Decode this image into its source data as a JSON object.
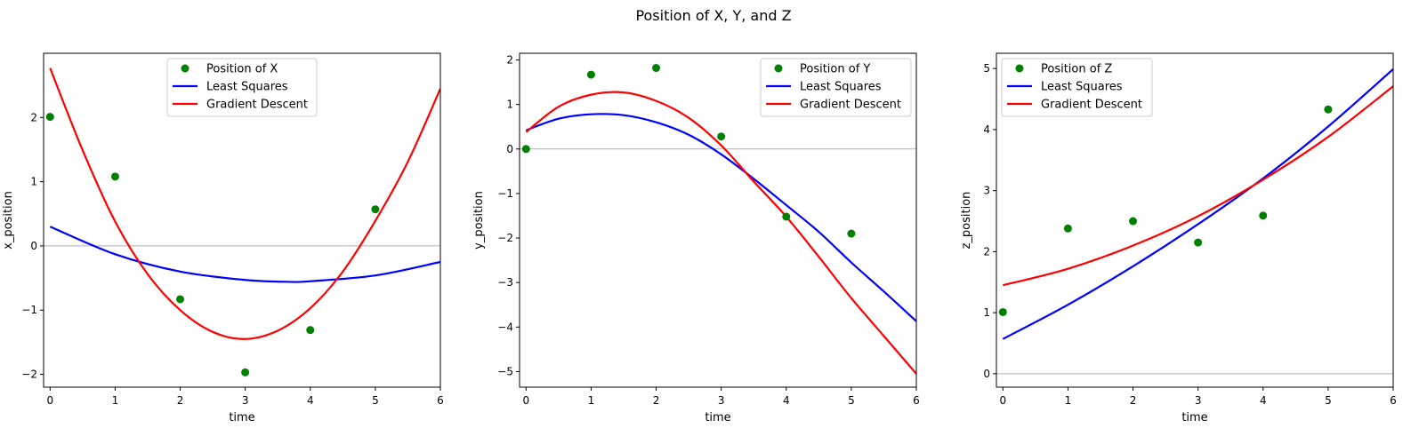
{
  "suptitle": "Position of X, Y, and Z",
  "colors": {
    "points": "#008000",
    "least_squares": "#0000ff",
    "gradient_descent": "#ff0000",
    "zero_line": "#b0b0b0"
  },
  "chart_data": [
    {
      "type": "scatter+line",
      "xlabel": "time",
      "ylabel": "x_position",
      "xlim": [
        -0.1,
        6
      ],
      "ylim": [
        -2.2,
        3.0
      ],
      "xticks": [
        0,
        1,
        2,
        3,
        4,
        5,
        6
      ],
      "yticks": [
        -2,
        -1,
        0,
        1,
        2
      ],
      "legend_position": "top-center",
      "zero_line": true,
      "points": {
        "name": "Position of X",
        "x": [
          0,
          1,
          2,
          3,
          4,
          5
        ],
        "y": [
          2.01,
          1.08,
          -0.83,
          -1.97,
          -1.31,
          0.57
        ]
      },
      "series": [
        {
          "name": "Least Squares",
          "x": [
            0,
            1,
            2,
            3,
            3.7,
            4,
            5,
            6
          ],
          "y": [
            0.3,
            -0.13,
            -0.4,
            -0.53,
            -0.56,
            -0.55,
            -0.46,
            -0.25
          ]
        },
        {
          "name": "Gradient Descent",
          "x": [
            0,
            0.5,
            1,
            1.5,
            2,
            2.5,
            3,
            3.5,
            4,
            4.5,
            5,
            5.5,
            6
          ],
          "y": [
            2.77,
            1.49,
            0.38,
            -0.44,
            -1.0,
            -1.34,
            -1.45,
            -1.32,
            -0.97,
            -0.4,
            0.39,
            1.31,
            2.45
          ]
        }
      ]
    },
    {
      "type": "scatter+line",
      "xlabel": "time",
      "ylabel": "y_position",
      "xlim": [
        -0.1,
        6
      ],
      "ylim": [
        -5.35,
        2.15
      ],
      "xticks": [
        0,
        1,
        2,
        3,
        4,
        5,
        6
      ],
      "yticks": [
        -5,
        -4,
        -3,
        -2,
        -1,
        0,
        1,
        2
      ],
      "legend_position": "top-right",
      "zero_line": true,
      "points": {
        "name": "Position of Y",
        "x": [
          0,
          1,
          2,
          3,
          4,
          5
        ],
        "y": [
          0.0,
          1.67,
          1.82,
          0.28,
          -1.52,
          -1.9
        ]
      },
      "series": [
        {
          "name": "Least Squares",
          "x": [
            0,
            0.5,
            1,
            1.5,
            2,
            2.5,
            3,
            3.5,
            4,
            4.5,
            5,
            5.5,
            6
          ],
          "y": [
            0.42,
            0.68,
            0.78,
            0.76,
            0.6,
            0.32,
            -0.12,
            -0.67,
            -1.26,
            -1.86,
            -2.55,
            -3.2,
            -3.87
          ]
        },
        {
          "name": "Gradient Descent",
          "x": [
            0,
            0.5,
            1,
            1.5,
            2,
            2.5,
            3,
            3.5,
            4,
            4.5,
            5,
            5.5,
            6
          ],
          "y": [
            0.38,
            0.95,
            1.22,
            1.27,
            1.08,
            0.7,
            0.08,
            -0.73,
            -1.52,
            -2.42,
            -3.35,
            -4.2,
            -5.05
          ]
        }
      ]
    },
    {
      "type": "scatter+line",
      "xlabel": "time",
      "ylabel": "z_position",
      "xlim": [
        -0.1,
        6
      ],
      "ylim": [
        -0.22,
        5.25
      ],
      "xticks": [
        0,
        1,
        2,
        3,
        4,
        5,
        6
      ],
      "yticks": [
        0,
        1,
        2,
        3,
        4,
        5
      ],
      "legend_position": "top-left",
      "zero_line": true,
      "points": {
        "name": "Position of Z",
        "x": [
          0,
          1,
          2,
          3,
          4,
          5
        ],
        "y": [
          1.01,
          2.38,
          2.5,
          2.15,
          2.59,
          4.33
        ]
      },
      "series": [
        {
          "name": "Least Squares",
          "x": [
            0,
            1,
            2,
            3,
            4,
            5,
            6
          ],
          "y": [
            0.57,
            1.13,
            1.76,
            2.45,
            3.2,
            4.05,
            4.99
          ]
        },
        {
          "name": "Gradient Descent",
          "x": [
            0,
            1,
            2,
            3,
            4,
            5,
            6
          ],
          "y": [
            1.45,
            1.72,
            2.1,
            2.58,
            3.18,
            3.88,
            4.71
          ]
        }
      ]
    }
  ]
}
